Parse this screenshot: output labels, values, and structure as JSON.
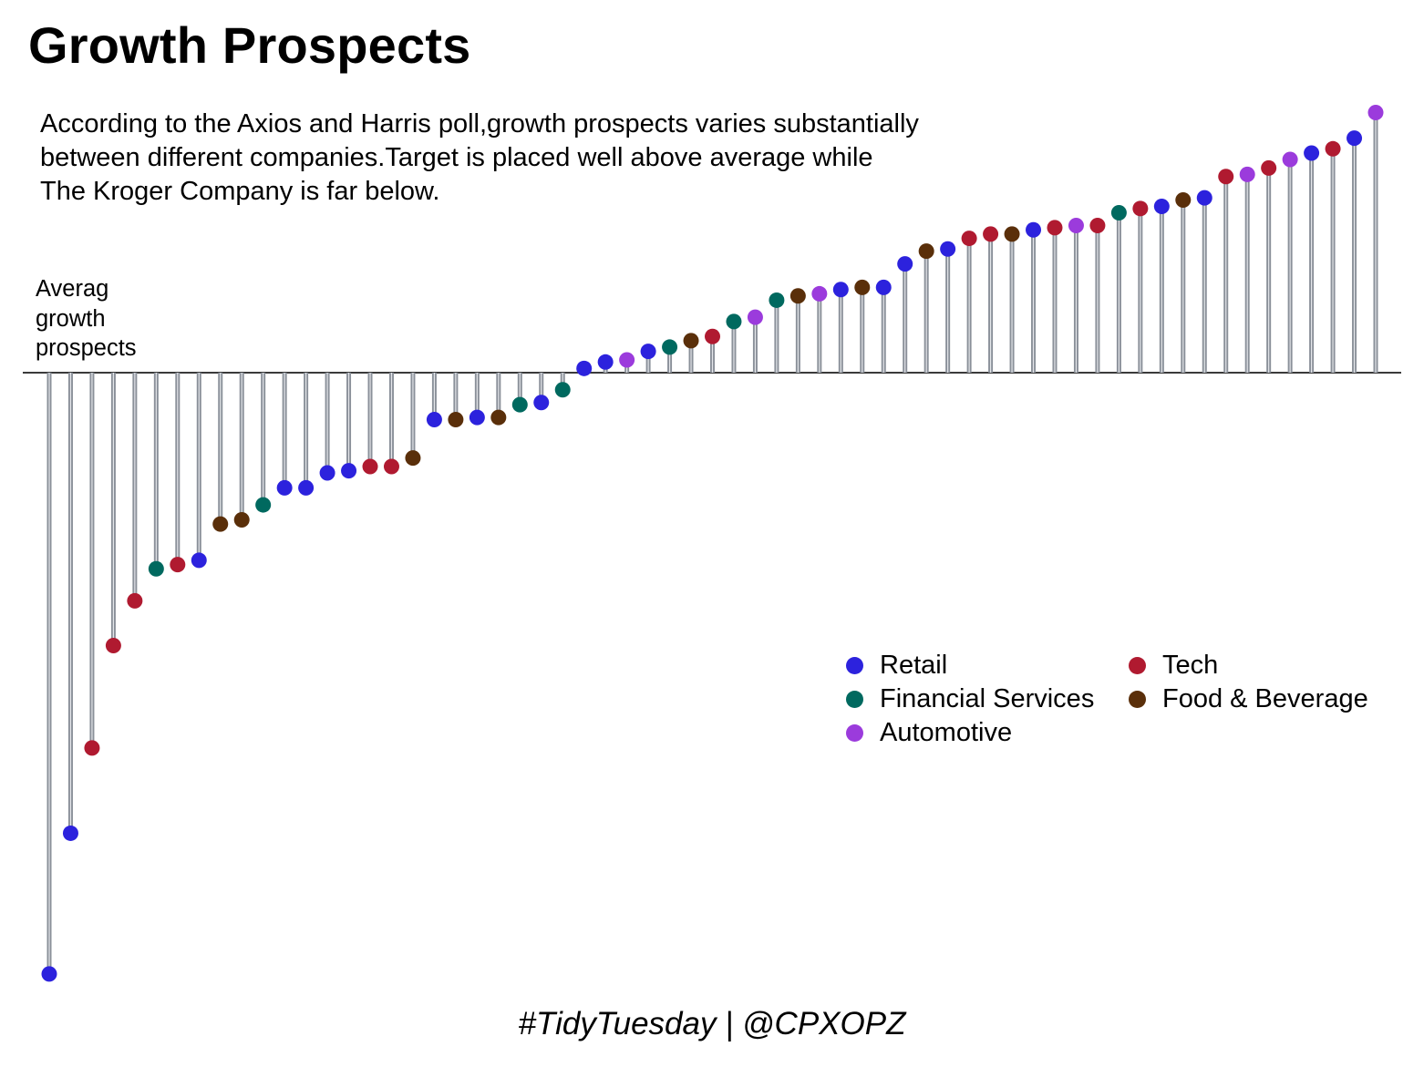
{
  "chart_data": {
    "type": "lollipop",
    "title": "Growth Prospects",
    "subtitle_lines": [
      "According to the Axios and Harris poll,growth prospects varies substantially",
      "between different companies.Target is placed well above average while",
      "The Kroger Company is far below."
    ],
    "reference_label_lines": [
      "Averag",
      "growth",
      "prospects"
    ],
    "caption": "#TidyTuesday | @CPXOPZ",
    "baseline": 0,
    "ylim": [
      -29,
      13
    ],
    "legend_position": "bottom-right",
    "categories": {
      "Retail": "#2c22dd",
      "Tech": "#b01a30",
      "Financial Services": "#00695f",
      "Food & Beverage": "#5a2f0a",
      "Automotive": "#9b3bdc"
    },
    "legend": [
      {
        "label": "Retail",
        "color_key": "Retail"
      },
      {
        "label": "Tech",
        "color_key": "Tech"
      },
      {
        "label": "Financial Services",
        "color_key": "Financial Services"
      },
      {
        "label": "Food & Beverage",
        "color_key": "Food & Beverage"
      },
      {
        "label": "Automotive",
        "color_key": "Automotive"
      }
    ],
    "points": [
      {
        "category": "Retail",
        "value": -28.2
      },
      {
        "category": "Retail",
        "value": -21.6
      },
      {
        "category": "Tech",
        "value": -17.6
      },
      {
        "category": "Tech",
        "value": -12.8
      },
      {
        "category": "Tech",
        "value": -10.7
      },
      {
        "category": "Financial Services",
        "value": -9.2
      },
      {
        "category": "Tech",
        "value": -9.0
      },
      {
        "category": "Retail",
        "value": -8.8
      },
      {
        "category": "Food & Beverage",
        "value": -7.1
      },
      {
        "category": "Food & Beverage",
        "value": -6.9
      },
      {
        "category": "Financial Services",
        "value": -6.2
      },
      {
        "category": "Retail",
        "value": -5.4
      },
      {
        "category": "Retail",
        "value": -5.4
      },
      {
        "category": "Retail",
        "value": -4.7
      },
      {
        "category": "Retail",
        "value": -4.6
      },
      {
        "category": "Tech",
        "value": -4.4
      },
      {
        "category": "Tech",
        "value": -4.4
      },
      {
        "category": "Food & Beverage",
        "value": -4.0
      },
      {
        "category": "Retail",
        "value": -2.2
      },
      {
        "category": "Food & Beverage",
        "value": -2.2
      },
      {
        "category": "Retail",
        "value": -2.1
      },
      {
        "category": "Food & Beverage",
        "value": -2.1
      },
      {
        "category": "Financial Services",
        "value": -1.5
      },
      {
        "category": "Retail",
        "value": -1.4
      },
      {
        "category": "Financial Services",
        "value": -0.8
      },
      {
        "category": "Retail",
        "value": 0.2
      },
      {
        "category": "Retail",
        "value": 0.5
      },
      {
        "category": "Automotive",
        "value": 0.6
      },
      {
        "category": "Retail",
        "value": 1.0
      },
      {
        "category": "Financial Services",
        "value": 1.2
      },
      {
        "category": "Food & Beverage",
        "value": 1.5
      },
      {
        "category": "Tech",
        "value": 1.7
      },
      {
        "category": "Financial Services",
        "value": 2.4
      },
      {
        "category": "Automotive",
        "value": 2.6
      },
      {
        "category": "Financial Services",
        "value": 3.4
      },
      {
        "category": "Food & Beverage",
        "value": 3.6
      },
      {
        "category": "Automotive",
        "value": 3.7
      },
      {
        "category": "Retail",
        "value": 3.9
      },
      {
        "category": "Food & Beverage",
        "value": 4.0
      },
      {
        "category": "Retail",
        "value": 4.0
      },
      {
        "category": "Retail",
        "value": 5.1
      },
      {
        "category": "Food & Beverage",
        "value": 5.7
      },
      {
        "category": "Retail",
        "value": 5.8
      },
      {
        "category": "Tech",
        "value": 6.3
      },
      {
        "category": "Tech",
        "value": 6.5
      },
      {
        "category": "Food & Beverage",
        "value": 6.5
      },
      {
        "category": "Retail",
        "value": 6.7
      },
      {
        "category": "Tech",
        "value": 6.8
      },
      {
        "category": "Automotive",
        "value": 6.9
      },
      {
        "category": "Tech",
        "value": 6.9
      },
      {
        "category": "Financial Services",
        "value": 7.5
      },
      {
        "category": "Tech",
        "value": 7.7
      },
      {
        "category": "Retail",
        "value": 7.8
      },
      {
        "category": "Food & Beverage",
        "value": 8.1
      },
      {
        "category": "Retail",
        "value": 8.2
      },
      {
        "category": "Tech",
        "value": 9.2
      },
      {
        "category": "Automotive",
        "value": 9.3
      },
      {
        "category": "Tech",
        "value": 9.6
      },
      {
        "category": "Automotive",
        "value": 10.0
      },
      {
        "category": "Retail",
        "value": 10.3
      },
      {
        "category": "Tech",
        "value": 10.5
      },
      {
        "category": "Retail",
        "value": 11.0
      },
      {
        "category": "Automotive",
        "value": 12.2
      }
    ]
  }
}
